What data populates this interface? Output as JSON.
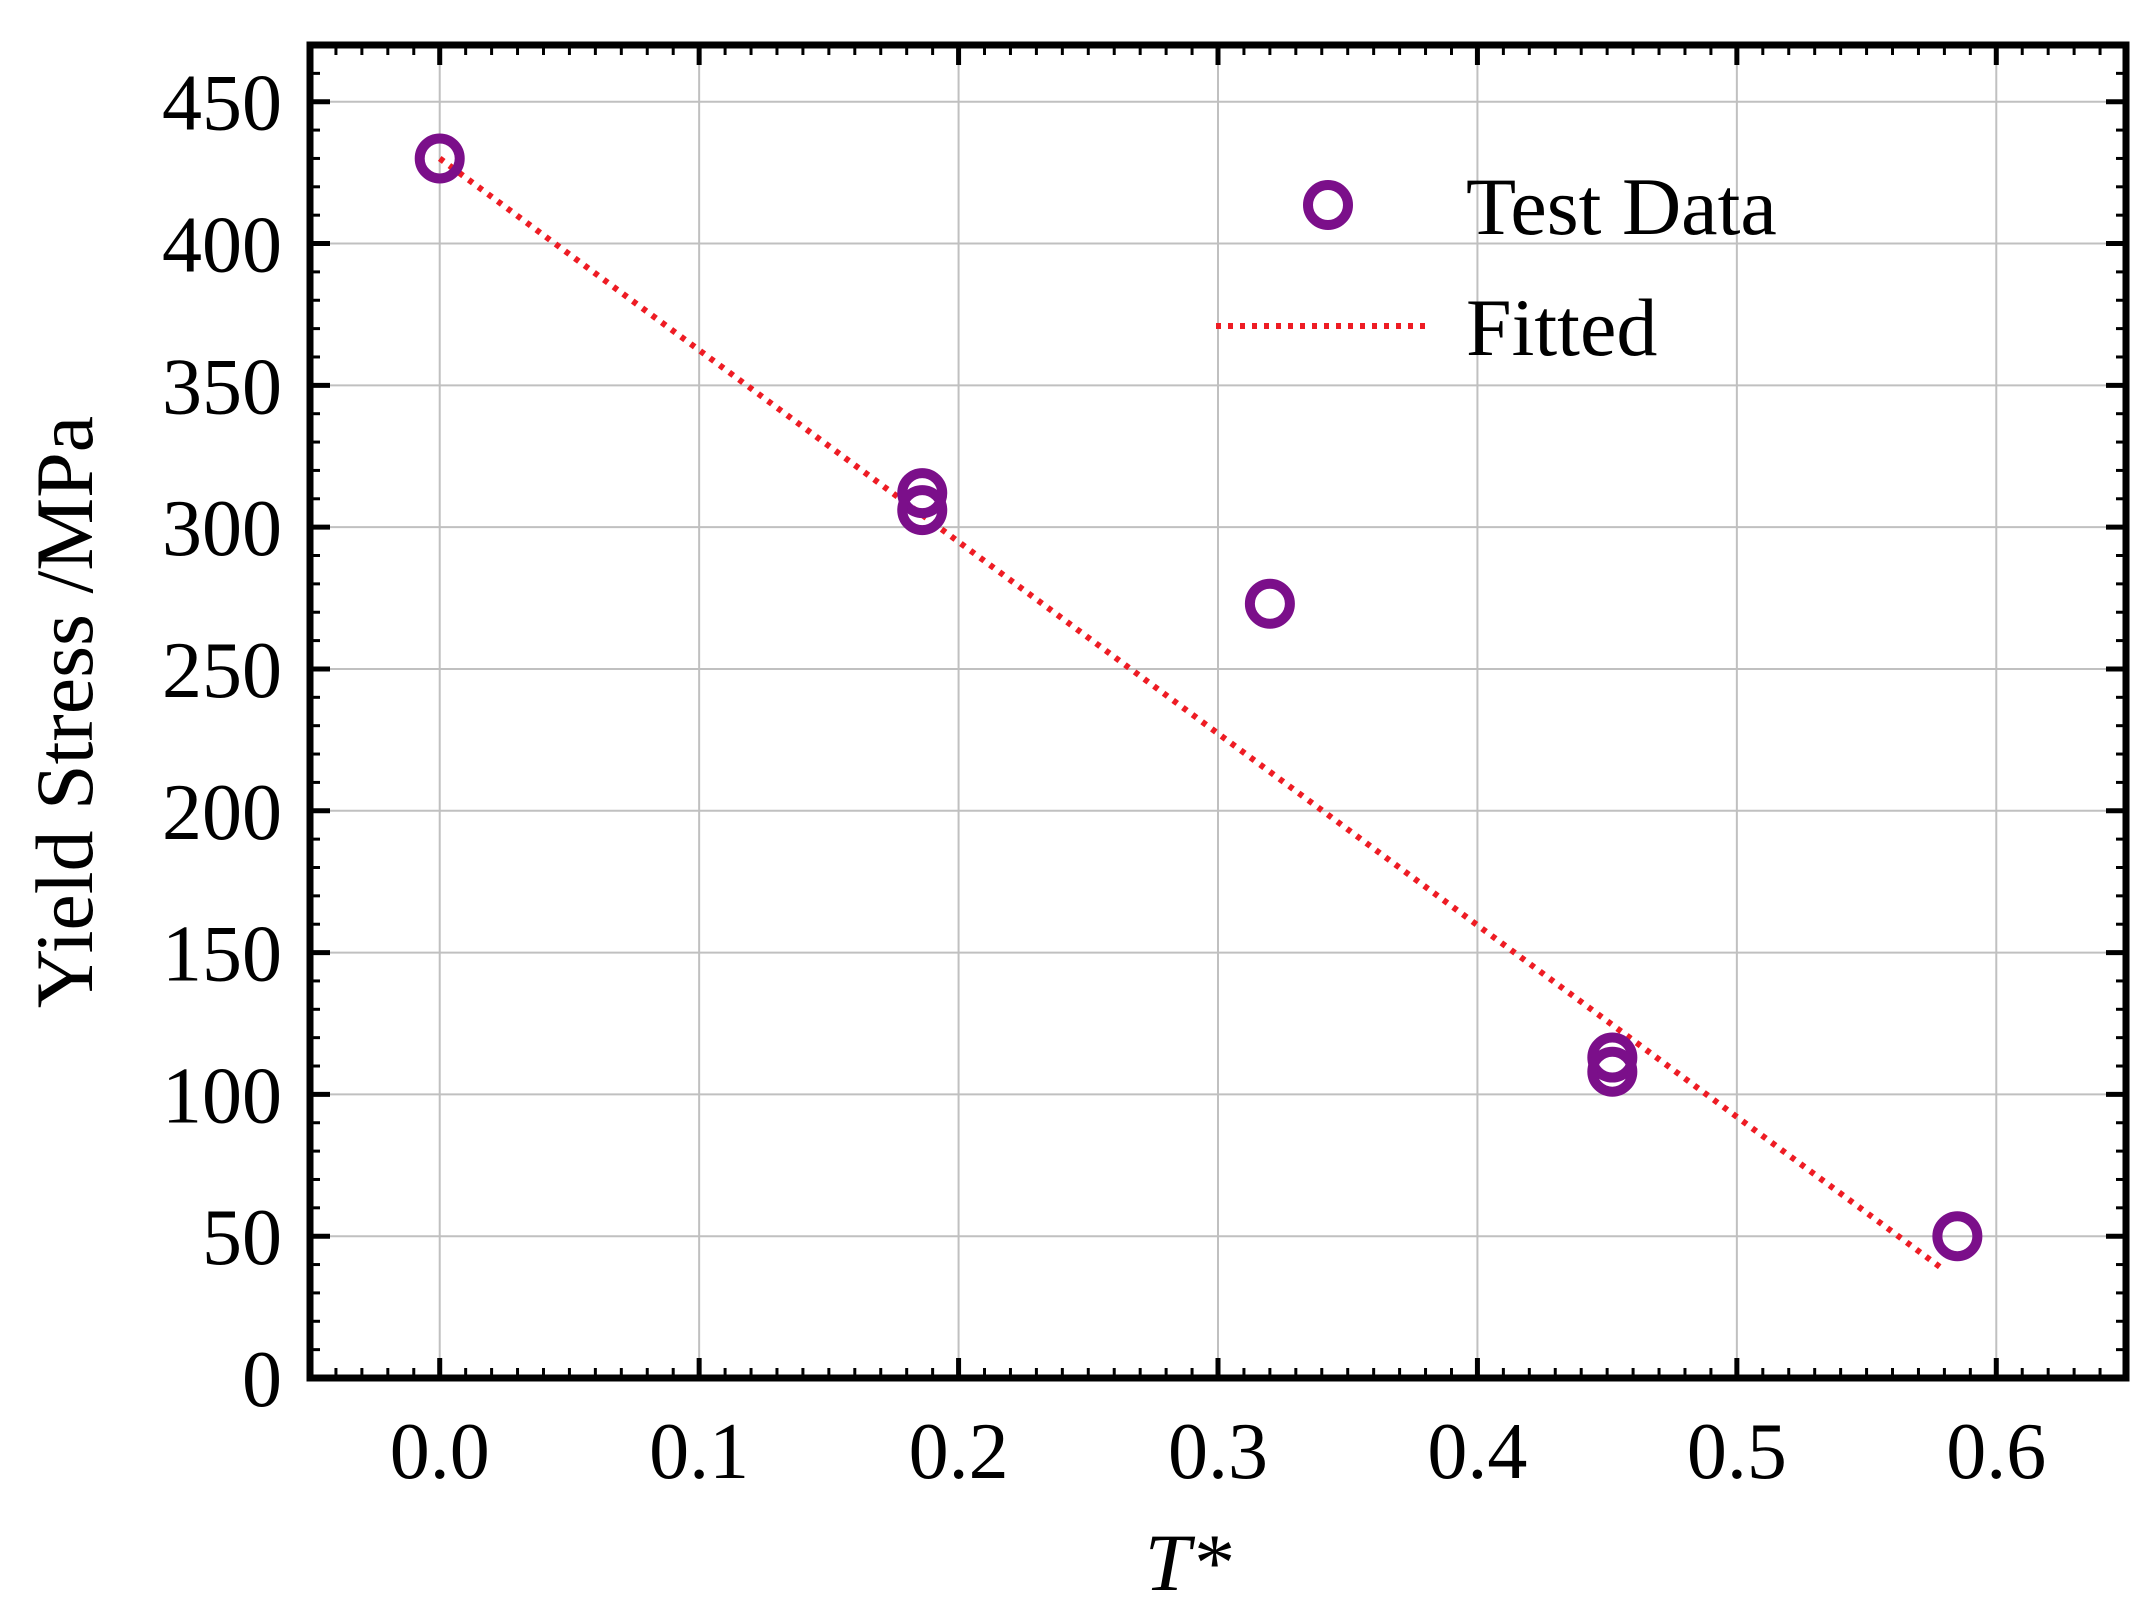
{
  "chart_data": {
    "type": "scatter",
    "title": "",
    "xlabel": "T*",
    "ylabel": "Yield Stress /MPa",
    "xlim": [
      -0.05,
      0.65
    ],
    "ylim": [
      0,
      470
    ],
    "xticks": [
      0.0,
      0.1,
      0.2,
      0.3,
      0.4,
      0.5,
      0.6
    ],
    "xtick_labels": [
      "0.0",
      "0.1",
      "0.2",
      "0.3",
      "0.4",
      "0.5",
      "0.6"
    ],
    "yticks": [
      0,
      50,
      100,
      150,
      200,
      250,
      300,
      350,
      400,
      450
    ],
    "ytick_labels": [
      "0",
      "50",
      "100",
      "150",
      "200",
      "250",
      "300",
      "350",
      "400",
      "450"
    ],
    "grid": true,
    "legend_position": "top-right",
    "series": [
      {
        "name": "Test Data",
        "kind": "scatter",
        "marker": "open-circle",
        "color": "#7b0f8a",
        "x": [
          0.0,
          0.186,
          0.186,
          0.32,
          0.452,
          0.452,
          0.585
        ],
        "y": [
          430,
          312,
          306,
          273,
          113,
          108,
          50
        ]
      },
      {
        "name": "Fitted",
        "kind": "line",
        "style": "dotted",
        "color": "#ee1c24",
        "x": [
          0.0,
          0.58
        ],
        "y": [
          430,
          38
        ]
      }
    ]
  }
}
